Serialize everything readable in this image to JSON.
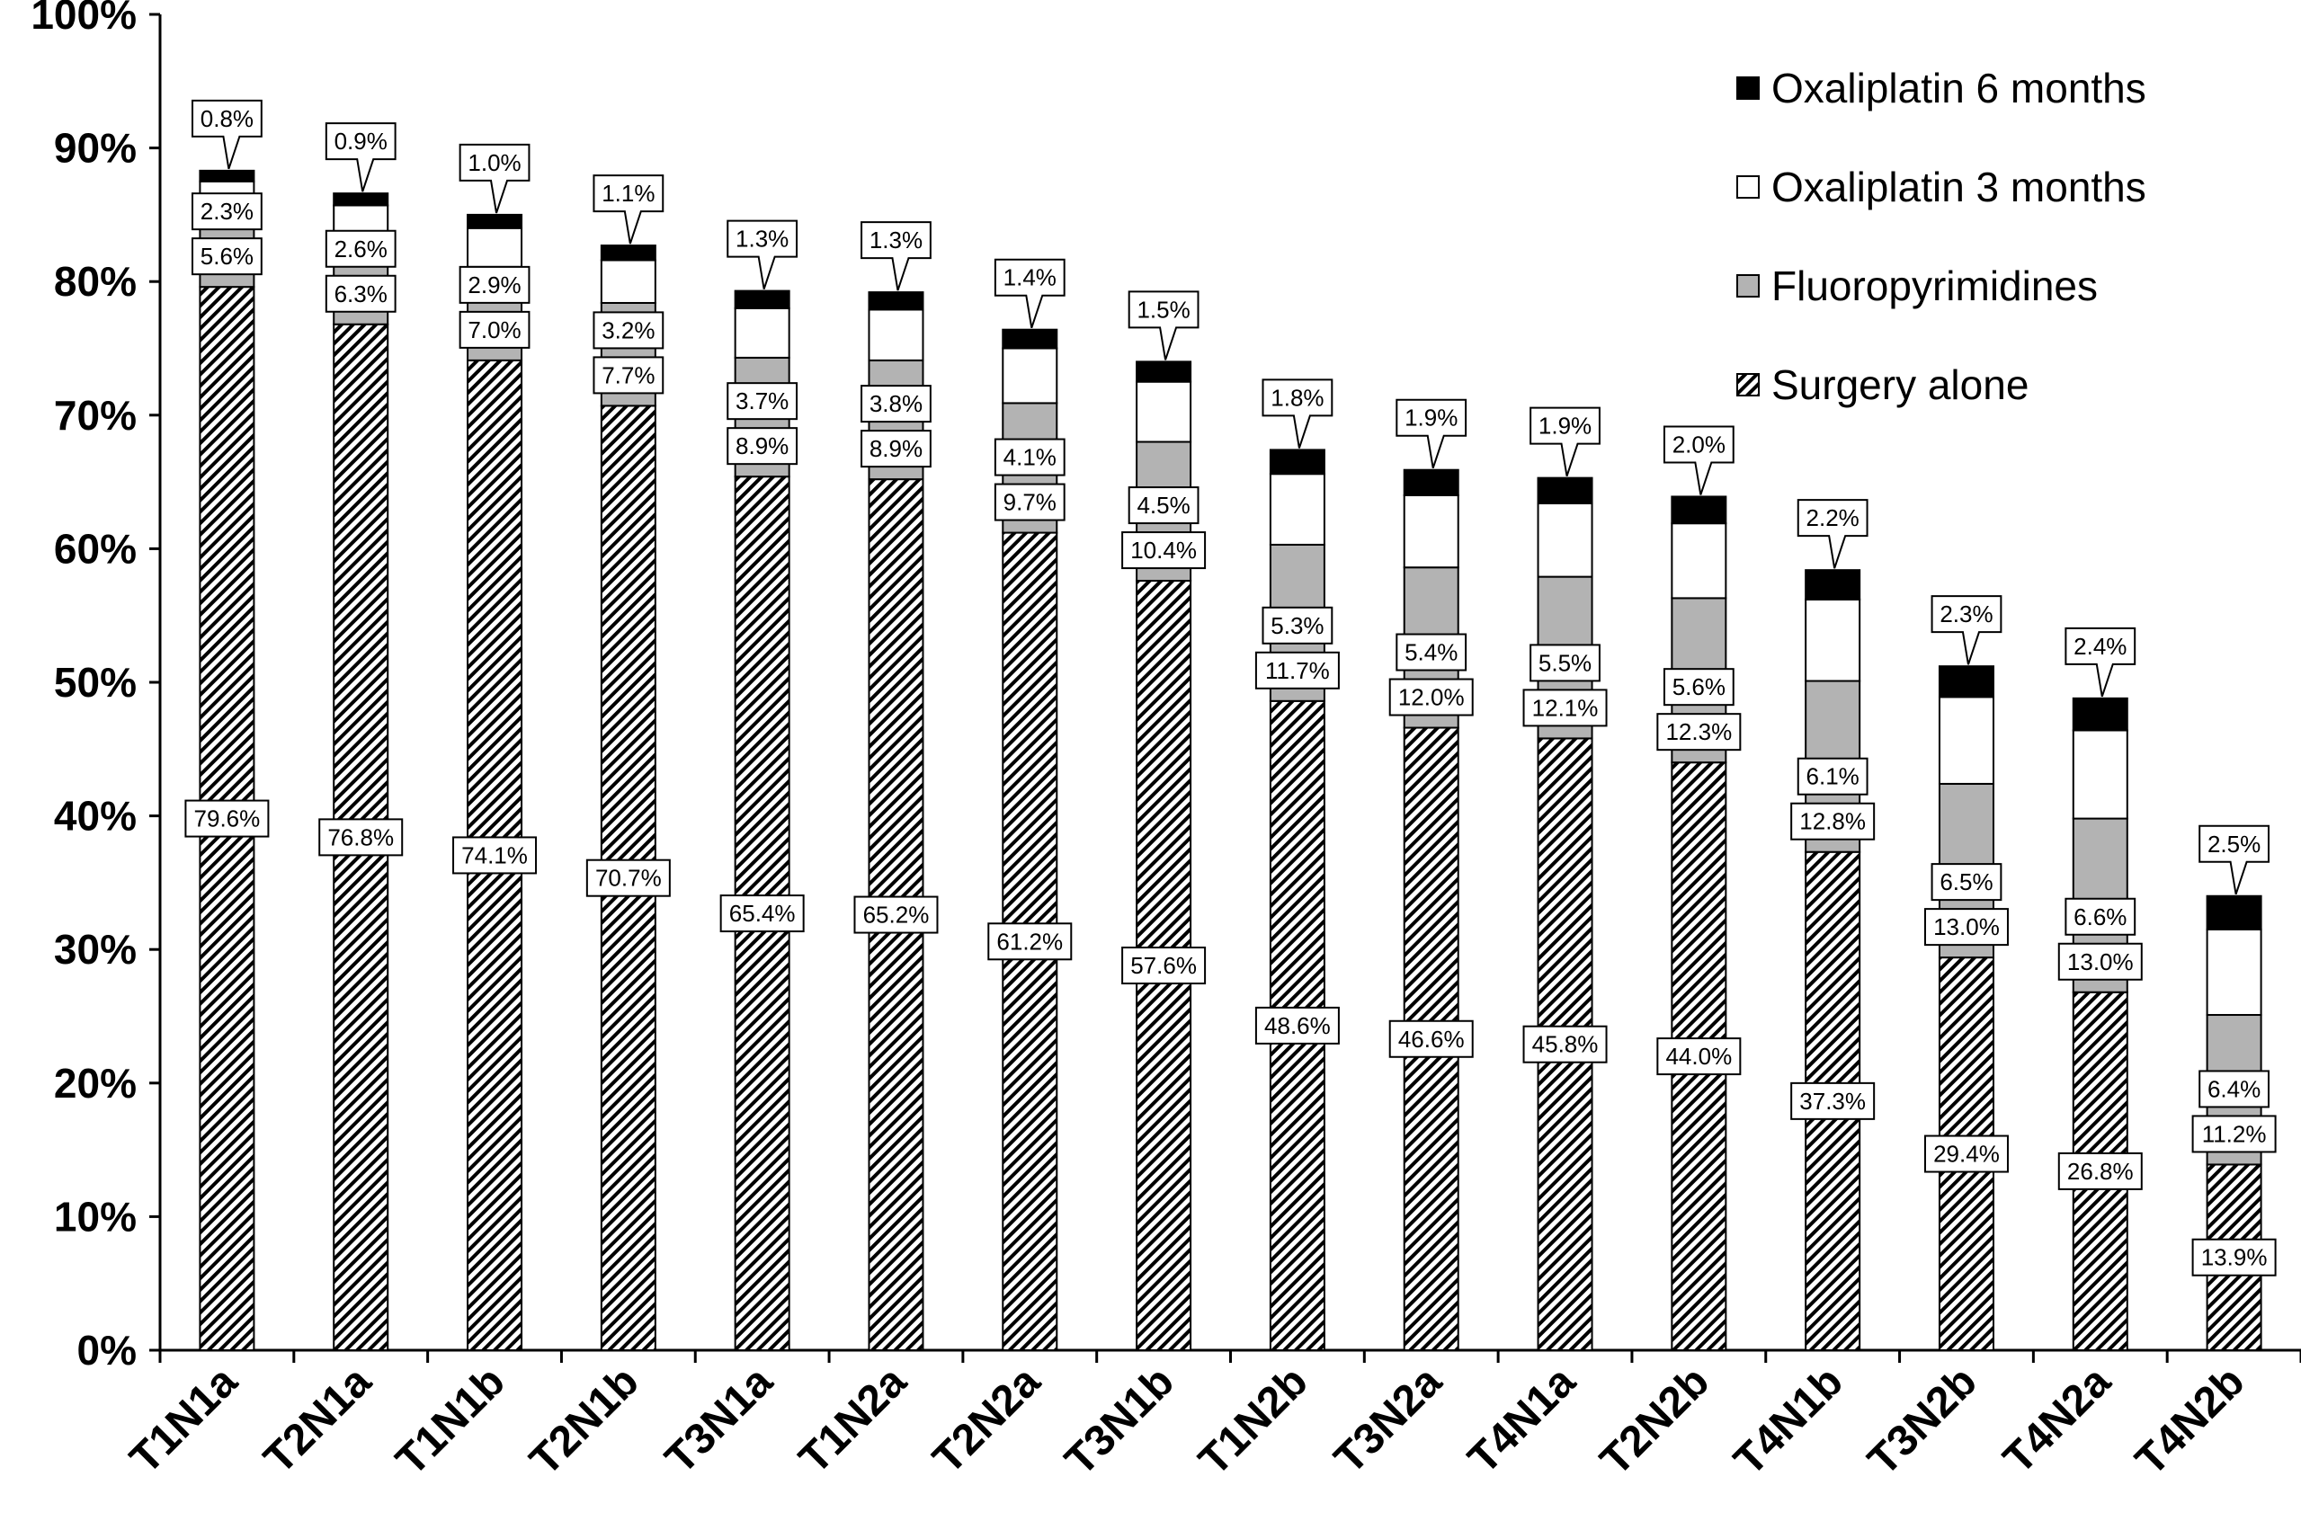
{
  "chart_data": {
    "type": "bar",
    "stacked": true,
    "title": "",
    "xlabel": "",
    "ylabel": "",
    "ylim": [
      0,
      100
    ],
    "yticks": [
      "0%",
      "10%",
      "20%",
      "30%",
      "40%",
      "50%",
      "60%",
      "70%",
      "80%",
      "90%",
      "100%"
    ],
    "grid": false,
    "legend_position": "top-right",
    "categories": [
      "T1N1a",
      "T2N1a",
      "T1N1b",
      "T2N1b",
      "T3N1a",
      "T1N2a",
      "T2N2a",
      "T3N1b",
      "T1N2b",
      "T3N2a",
      "T4N1a",
      "T2N2b",
      "T4N1b",
      "T3N2b",
      "T4N2a",
      "T4N2b"
    ],
    "series": [
      {
        "name": "Surgery alone",
        "pattern": "hatched",
        "color": "#ffffff",
        "values": [
          79.6,
          76.8,
          74.1,
          70.7,
          65.4,
          65.2,
          61.2,
          57.6,
          48.6,
          46.6,
          45.8,
          44.0,
          37.3,
          29.4,
          26.8,
          13.9
        ],
        "labels": [
          "79.6%",
          "76.8%",
          "74.1%",
          "70.7%",
          "65.4%",
          "65.2%",
          "61.2%",
          "57.6%",
          "48.6%",
          "46.6%",
          "45.8%",
          "44.0%",
          "37.3%",
          "29.4%",
          "26.8%",
          "13.9%"
        ]
      },
      {
        "name": "Fluoropyrimidines",
        "color": "#b3b3b3",
        "values": [
          5.6,
          6.3,
          7.0,
          7.7,
          8.9,
          8.9,
          9.7,
          10.4,
          11.7,
          12.0,
          12.1,
          12.3,
          12.8,
          13.0,
          13.0,
          11.2
        ],
        "labels": [
          "5.6%",
          "6.3%",
          "7.0%",
          "7.7%",
          "8.9%",
          "8.9%",
          "9.7%",
          "10.4%",
          "11.7%",
          "12.0%",
          "12.1%",
          "12.3%",
          "12.8%",
          "13.0%",
          "13.0%",
          "11.2%"
        ]
      },
      {
        "name": "Oxaliplatin 3 months",
        "color": "#ffffff",
        "values": [
          2.3,
          2.6,
          2.9,
          3.2,
          3.7,
          3.8,
          4.1,
          4.5,
          5.3,
          5.4,
          5.5,
          5.6,
          6.1,
          6.5,
          6.6,
          6.4
        ],
        "labels": [
          "2.3%",
          "2.6%",
          "2.9%",
          "3.2%",
          "3.7%",
          "3.8%",
          "4.1%",
          "4.5%",
          "5.3%",
          "5.4%",
          "5.5%",
          "5.6%",
          "6.1%",
          "6.5%",
          "6.6%",
          "6.4%"
        ]
      },
      {
        "name": "Oxaliplatin 6 months",
        "color": "#000000",
        "values": [
          0.8,
          0.9,
          1.0,
          1.1,
          1.3,
          1.3,
          1.4,
          1.5,
          1.8,
          1.9,
          1.9,
          2.0,
          2.2,
          2.3,
          2.4,
          2.5
        ],
        "labels": [
          "0.8%",
          "0.9%",
          "1.0%",
          "1.1%",
          "1.3%",
          "1.3%",
          "1.4%",
          "1.5%",
          "1.8%",
          "1.9%",
          "1.9%",
          "2.0%",
          "2.2%",
          "2.3%",
          "2.4%",
          "2.5%"
        ]
      }
    ],
    "legend": [
      {
        "label": "Oxaliplatin 6 months",
        "color": "#000000"
      },
      {
        "label": "Oxaliplatin 3 months",
        "color": "#ffffff"
      },
      {
        "label": "Fluoropyrimidines",
        "color": "#b3b3b3"
      },
      {
        "label": "Surgery alone",
        "color": "#ffffff",
        "pattern": "hatched"
      }
    ]
  }
}
